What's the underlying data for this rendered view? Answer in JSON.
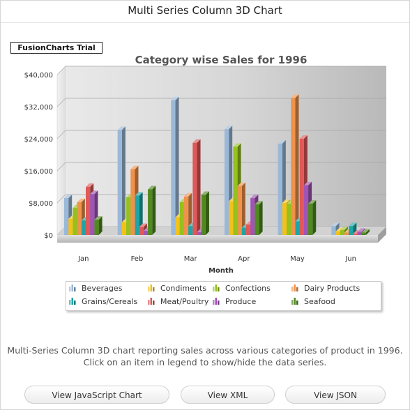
{
  "page": {
    "title": "Multi Series Column 3D Chart",
    "trial_badge": "FusionCharts Trial",
    "description_line1": "Multi-Series Column 3D chart reporting sales across various categories of product in 1996.",
    "description_line2": "Click on an item in legend to show/hide the data series."
  },
  "buttons": {
    "javascript": "View JavaScript Chart",
    "xml": "View XML",
    "json": "View JSON"
  },
  "chart_data": {
    "type": "bar",
    "title": "Category wise Sales for 1996",
    "xlabel": "Month",
    "ylabel": "",
    "ylim": [
      0,
      40000
    ],
    "y_ticks": [
      0,
      8000,
      16000,
      24000,
      32000,
      40000
    ],
    "y_tick_labels": [
      "$0",
      "$8,000",
      "$16,000",
      "$24,000",
      "$32,000",
      "$40,000"
    ],
    "categories": [
      "Jan",
      "Feb",
      "Mar",
      "Apr",
      "May",
      "Jun"
    ],
    "grid": true,
    "legend_position": "bottom",
    "series": [
      {
        "name": "Beverages",
        "color": "#9ab8d8",
        "values": [
          9200,
          26200,
          33600,
          26400,
          22800,
          2200
        ]
      },
      {
        "name": "Condiments",
        "color": "#f2c21b",
        "values": [
          4000,
          3200,
          4400,
          8400,
          8000,
          900
        ]
      },
      {
        "name": "Confections",
        "color": "#95c11f",
        "values": [
          6800,
          9400,
          8200,
          22000,
          7800,
          1200
        ]
      },
      {
        "name": "Dairy Products",
        "color": "#f0924a",
        "values": [
          8200,
          16400,
          9600,
          12200,
          34200,
          600
        ]
      },
      {
        "name": "Grains/Cereals",
        "color": "#1ea6a6",
        "values": [
          3600,
          9800,
          2200,
          1800,
          3400,
          2200
        ]
      },
      {
        "name": "Meat/Poultry",
        "color": "#e05858",
        "values": [
          12000,
          2000,
          23000,
          2600,
          24000,
          300
        ]
      },
      {
        "name": "Produce",
        "color": "#a054b4",
        "values": [
          10200,
          1000,
          700,
          9200,
          12400,
          800
        ]
      },
      {
        "name": "Seafood",
        "color": "#4f8a1e",
        "values": [
          3800,
          11400,
          10000,
          7600,
          7800,
          600
        ]
      }
    ]
  }
}
